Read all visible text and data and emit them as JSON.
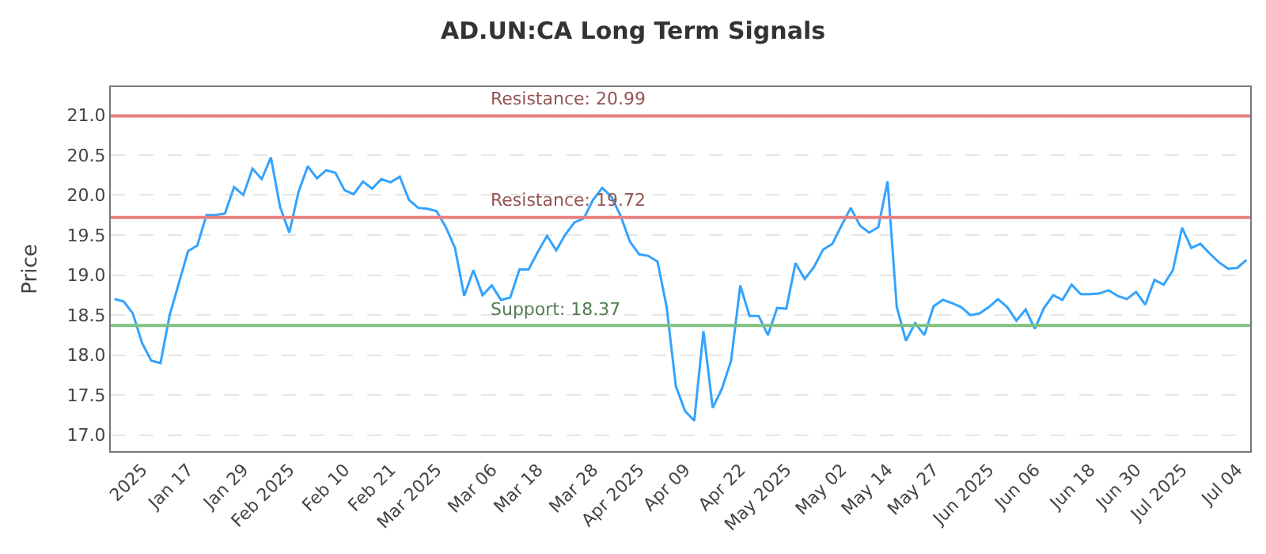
{
  "chart_data": {
    "type": "line",
    "title": "AD.UN:CA Long Term Signals",
    "ylabel": "Price",
    "categories": [
      null,
      null,
      null,
      "2025",
      null,
      null,
      null,
      null,
      "Jan 17",
      null,
      null,
      null,
      null,
      null,
      "Jan 29",
      null,
      null,
      null,
      null,
      "Feb 2025",
      null,
      null,
      null,
      null,
      null,
      "Feb 10",
      null,
      null,
      null,
      null,
      "Feb 21",
      null,
      null,
      null,
      null,
      "Mar 2025",
      null,
      null,
      null,
      null,
      null,
      "Mar 06",
      null,
      null,
      null,
      null,
      "Mar 18",
      null,
      null,
      null,
      null,
      null,
      "Mar 28",
      null,
      null,
      null,
      null,
      "Apr 2025",
      null,
      null,
      null,
      null,
      "Apr 09",
      null,
      null,
      null,
      null,
      null,
      "Apr 22",
      null,
      null,
      null,
      null,
      "May 2025",
      null,
      null,
      null,
      null,
      null,
      "May 02",
      null,
      null,
      null,
      null,
      "May 14",
      null,
      null,
      null,
      null,
      "May 27",
      null,
      null,
      null,
      null,
      null,
      "Jun 2025",
      null,
      null,
      null,
      null,
      "Jun 06",
      null,
      null,
      null,
      null,
      null,
      "Jun 18",
      null,
      null,
      null,
      null,
      "Jun 30",
      null,
      null,
      null,
      null,
      "Jul 2025",
      null,
      null,
      null,
      null,
      null,
      "Jul 04",
      null
    ],
    "series": [
      {
        "color": "#33a3ff",
        "values": [
          18.7,
          18.67,
          18.52,
          18.15,
          17.93,
          17.9,
          18.5,
          18.9,
          19.3,
          19.37,
          19.75,
          19.75,
          19.77,
          20.1,
          20.0,
          20.33,
          20.2,
          20.47,
          19.85,
          19.53,
          20.04,
          20.36,
          20.21,
          20.31,
          20.28,
          20.06,
          20.01,
          20.17,
          20.08,
          20.2,
          20.16,
          20.23,
          19.94,
          19.84,
          19.83,
          19.8,
          19.6,
          19.34,
          18.74,
          19.06,
          18.75,
          18.87,
          18.69,
          18.72,
          19.07,
          19.07,
          19.29,
          19.49,
          19.31,
          19.51,
          19.66,
          19.71,
          19.94,
          20.09,
          19.98,
          19.74,
          19.42,
          19.26,
          19.24,
          19.17,
          18.6,
          17.61,
          17.3,
          17.18,
          18.3,
          17.34,
          17.58,
          17.93,
          18.87,
          18.49,
          18.49,
          18.25,
          18.59,
          18.58,
          19.15,
          18.95,
          19.1,
          19.32,
          19.39,
          19.62,
          19.84,
          19.62,
          19.53,
          19.6,
          20.17,
          18.6,
          18.18,
          18.4,
          18.25,
          18.61,
          18.69,
          18.65,
          18.6,
          18.5,
          18.52,
          18.6,
          18.7,
          18.6,
          18.43,
          18.57,
          18.33,
          18.59,
          18.75,
          18.69,
          18.88,
          18.76,
          18.76,
          18.77,
          18.81,
          18.74,
          18.7,
          18.79,
          18.63,
          18.94,
          18.88,
          19.06,
          19.59,
          19.34,
          19.39,
          19.27,
          19.16,
          19.08,
          19.09,
          19.19
        ]
      }
    ],
    "ylim": [
      16.8,
      21.35
    ],
    "yticks": [
      {
        "value": 17,
        "label": "17.0"
      },
      17.5,
      {
        "value": 18,
        "label": "18.0"
      },
      18.5,
      {
        "value": 19,
        "label": "19.0"
      },
      19.5,
      {
        "value": 20,
        "label": "20.0"
      },
      20.5,
      {
        "value": 21,
        "label": "21.0"
      }
    ],
    "ref_lines": [
      {
        "axis": "y",
        "value": 20.99,
        "label": "Resistance: 20.99",
        "color": "#e88080"
      },
      {
        "axis": "y",
        "value": 19.72,
        "label": "Resistance: 19.72",
        "color": "#e88080"
      },
      {
        "axis": "y",
        "value": 18.37,
        "label": "Support: 18.37",
        "color": "#80c080"
      }
    ],
    "grid": "y",
    "marker": "none",
    "line_style": "solid"
  }
}
